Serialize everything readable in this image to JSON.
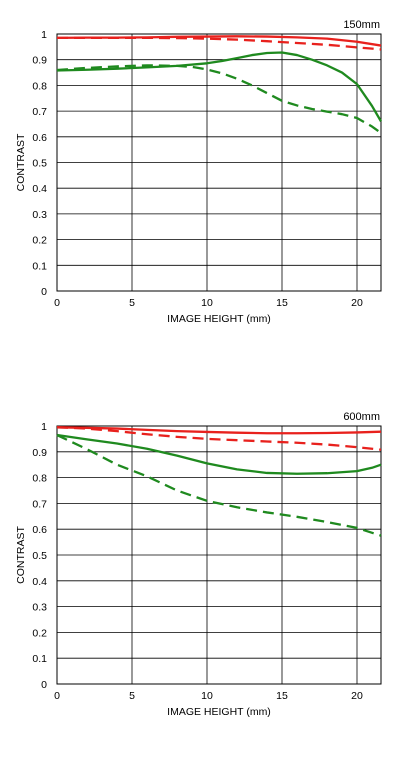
{
  "chart_data": [
    {
      "type": "line",
      "title": "150mm",
      "xlabel": "IMAGE HEIGHT (mm)",
      "ylabel": "CONTRAST",
      "xlim": [
        0,
        21.6
      ],
      "ylim": [
        0,
        1
      ],
      "xticks": [
        0,
        5,
        10,
        15,
        20
      ],
      "yticks": [
        0,
        0.1,
        0.2,
        0.3,
        0.4,
        0.5,
        0.6,
        0.7,
        0.8,
        0.9,
        1
      ],
      "grid": true,
      "series": [
        {
          "color": "#e8211d",
          "dash": false,
          "x": [
            0,
            2,
            4,
            6,
            8,
            10,
            12,
            14,
            16,
            18,
            20,
            21.6
          ],
          "y": [
            0.985,
            0.986,
            0.986,
            0.987,
            0.989,
            0.99,
            0.991,
            0.99,
            0.987,
            0.982,
            0.97,
            0.955
          ]
        },
        {
          "color": "#e8211d",
          "dash": true,
          "x": [
            0,
            2,
            4,
            6,
            8,
            10,
            12,
            14,
            16,
            18,
            20,
            21.6
          ],
          "y": [
            0.985,
            0.985,
            0.985,
            0.985,
            0.984,
            0.982,
            0.978,
            0.972,
            0.965,
            0.958,
            0.948,
            0.94
          ]
        },
        {
          "color": "#1f8a1f",
          "dash": false,
          "x": [
            0,
            2,
            4,
            6,
            8,
            10,
            11,
            12,
            13,
            14,
            15,
            16,
            17,
            18,
            19,
            20,
            21,
            21.6
          ],
          "y": [
            0.858,
            0.861,
            0.865,
            0.87,
            0.876,
            0.886,
            0.895,
            0.906,
            0.918,
            0.926,
            0.928,
            0.918,
            0.9,
            0.878,
            0.85,
            0.805,
            0.72,
            0.66
          ]
        },
        {
          "color": "#1f8a1f",
          "dash": true,
          "x": [
            0,
            2,
            4,
            6,
            8,
            9,
            10,
            11,
            12,
            13,
            14,
            15,
            16,
            17,
            18,
            19,
            20,
            21,
            21.6
          ],
          "y": [
            0.86,
            0.868,
            0.874,
            0.878,
            0.876,
            0.872,
            0.862,
            0.847,
            0.826,
            0.8,
            0.77,
            0.74,
            0.722,
            0.708,
            0.698,
            0.688,
            0.673,
            0.64,
            0.615
          ]
        }
      ]
    },
    {
      "type": "line",
      "title": "600mm",
      "xlabel": "IMAGE HEIGHT (mm)",
      "ylabel": "CONTRAST",
      "xlim": [
        0,
        21.6
      ],
      "ylim": [
        0,
        1
      ],
      "xticks": [
        0,
        5,
        10,
        15,
        20
      ],
      "yticks": [
        0,
        0.1,
        0.2,
        0.3,
        0.4,
        0.5,
        0.6,
        0.7,
        0.8,
        0.9,
        1
      ],
      "grid": true,
      "series": [
        {
          "color": "#e8211d",
          "dash": false,
          "x": [
            0,
            2,
            4,
            6,
            8,
            10,
            12,
            14,
            16,
            18,
            20,
            21.6
          ],
          "y": [
            0.995,
            0.993,
            0.99,
            0.985,
            0.98,
            0.977,
            0.974,
            0.972,
            0.972,
            0.973,
            0.975,
            0.978
          ]
        },
        {
          "color": "#e8211d",
          "dash": true,
          "x": [
            0,
            2,
            4,
            6,
            8,
            10,
            12,
            14,
            16,
            18,
            20,
            21.6
          ],
          "y": [
            0.995,
            0.99,
            0.98,
            0.968,
            0.958,
            0.95,
            0.945,
            0.94,
            0.935,
            0.928,
            0.918,
            0.908
          ]
        },
        {
          "color": "#1f8a1f",
          "dash": false,
          "x": [
            0,
            2,
            4,
            6,
            8,
            10,
            12,
            14,
            16,
            18,
            20,
            21,
            21.6
          ],
          "y": [
            0.965,
            0.948,
            0.932,
            0.912,
            0.885,
            0.855,
            0.832,
            0.818,
            0.815,
            0.817,
            0.825,
            0.838,
            0.85
          ]
        },
        {
          "color": "#1f8a1f",
          "dash": true,
          "x": [
            0,
            2,
            4,
            6,
            8,
            10,
            12,
            14,
            16,
            18,
            20,
            21.6
          ],
          "y": [
            0.965,
            0.91,
            0.85,
            0.805,
            0.75,
            0.71,
            0.685,
            0.665,
            0.648,
            0.628,
            0.605,
            0.575
          ]
        }
      ]
    }
  ]
}
